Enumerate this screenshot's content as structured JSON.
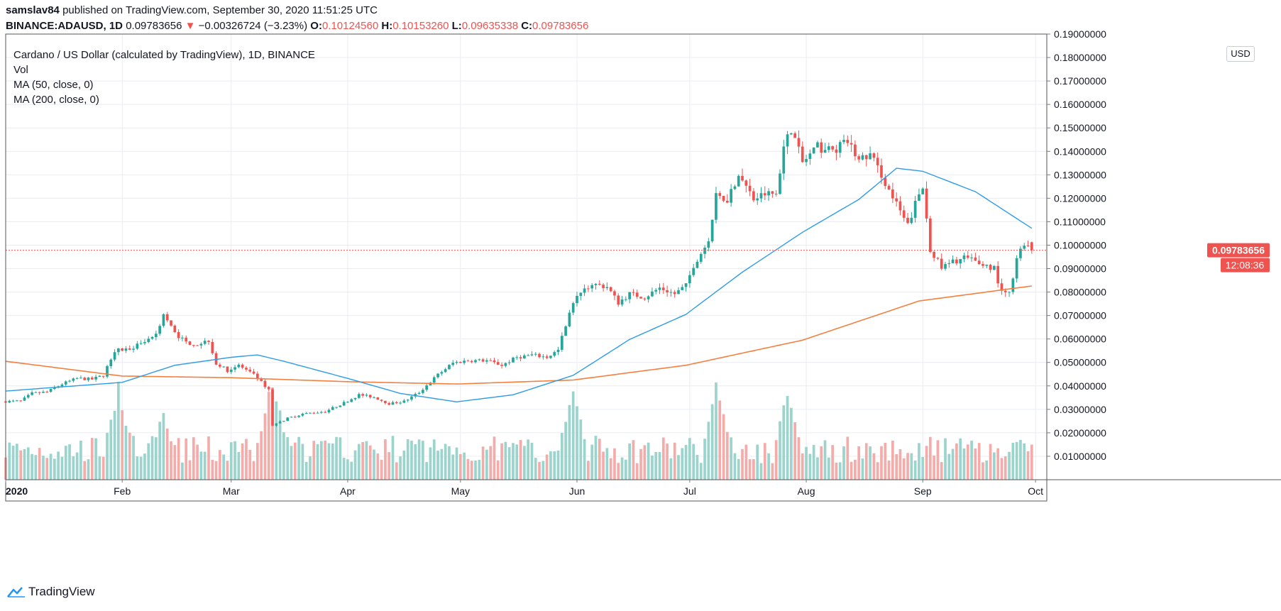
{
  "header": {
    "publisher": "samslav84",
    "published_text": "published on TradingView.com, September 30, 2020 11:51:25 UTC",
    "symbol": "BINANCE:ADAUSD, 1D",
    "last": "0.09783656",
    "change_arrow": "▼",
    "change": "−0.00326724 (−3.23%)",
    "o_label": "O:",
    "o": "0.10124560",
    "h_label": "H:",
    "h": "0.10153260",
    "l_label": "L:",
    "l": "0.09635338",
    "c_label": "C:",
    "c": "0.09783656"
  },
  "legend": {
    "title": "Cardano / US Dollar (calculated by TradingView), 1D, BINANCE",
    "vol": "Vol",
    "ma50": "MA (50, close, 0)",
    "ma200": "MA (200, close, 0)"
  },
  "price_scale": {
    "currency": "USD",
    "last_price_label": "0.09783656",
    "countdown_label": "12:08:36"
  },
  "footer": {
    "brand": "TradingView",
    "logo_icon": "tradingview-logo-icon"
  },
  "colors": {
    "up": "#26a69a",
    "down": "#ef5350",
    "up_vol": "#9bd4cc",
    "down_vol": "#f4acab",
    "ma50": "#2e9be8",
    "ma200": "#f57f3f",
    "grid": "#e8ecf2"
  },
  "chart_data": {
    "type": "candlestick",
    "interval": "1D",
    "ylim": [
      0,
      0.19
    ],
    "yticks": [
      "0.01000000",
      "0.02000000",
      "0.03000000",
      "0.04000000",
      "0.05000000",
      "0.06000000",
      "0.07000000",
      "0.08000000",
      "0.09000000",
      "0.10000000",
      "0.11000000",
      "0.12000000",
      "0.13000000",
      "0.14000000",
      "0.15000000",
      "0.16000000",
      "0.17000000",
      "0.18000000",
      "0.19000000"
    ],
    "xlim": [
      "2020-01-01",
      "2020-10-04"
    ],
    "xticks": [
      {
        "date": "2020-01-01",
        "label": "2020"
      },
      {
        "date": "2020-02-01",
        "label": "Feb"
      },
      {
        "date": "2020-03-01",
        "label": "Mar"
      },
      {
        "date": "2020-04-01",
        "label": "Apr"
      },
      {
        "date": "2020-05-01",
        "label": "May"
      },
      {
        "date": "2020-06-01",
        "label": "Jun"
      },
      {
        "date": "2020-07-01",
        "label": "Jul"
      },
      {
        "date": "2020-08-01",
        "label": "Aug"
      },
      {
        "date": "2020-09-01",
        "label": "Sep"
      },
      {
        "date": "2020-10-01",
        "label": "Oct"
      }
    ],
    "close_anchors": [
      [
        "2020-01-01",
        0.0334
      ],
      [
        "2020-01-05",
        0.0335
      ],
      [
        "2020-01-08",
        0.0368
      ],
      [
        "2020-01-12",
        0.0374
      ],
      [
        "2020-01-16",
        0.0408
      ],
      [
        "2020-01-20",
        0.0432
      ],
      [
        "2020-01-24",
        0.0428
      ],
      [
        "2020-01-27",
        0.0445
      ],
      [
        "2020-01-30",
        0.0552
      ],
      [
        "2020-02-02",
        0.0555
      ],
      [
        "2020-02-06",
        0.0578
      ],
      [
        "2020-02-10",
        0.062
      ],
      [
        "2020-02-12",
        0.0706
      ],
      [
        "2020-02-15",
        0.0625
      ],
      [
        "2020-02-18",
        0.0585
      ],
      [
        "2020-02-21",
        0.0578
      ],
      [
        "2020-02-24",
        0.0595
      ],
      [
        "2020-02-26",
        0.0495
      ],
      [
        "2020-02-29",
        0.0466
      ],
      [
        "2020-03-03",
        0.0488
      ],
      [
        "2020-03-07",
        0.0446
      ],
      [
        "2020-03-11",
        0.0385
      ],
      [
        "2020-03-12",
        0.0232
      ],
      [
        "2020-03-16",
        0.0262
      ],
      [
        "2020-03-20",
        0.0281
      ],
      [
        "2020-03-26",
        0.0291
      ],
      [
        "2020-03-31",
        0.0328
      ],
      [
        "2020-04-04",
        0.0362
      ],
      [
        "2020-04-08",
        0.0352
      ],
      [
        "2020-04-12",
        0.0324
      ],
      [
        "2020-04-16",
        0.0334
      ],
      [
        "2020-04-20",
        0.0372
      ],
      [
        "2020-04-25",
        0.0448
      ],
      [
        "2020-04-29",
        0.0498
      ],
      [
        "2020-05-03",
        0.0508
      ],
      [
        "2020-05-08",
        0.0508
      ],
      [
        "2020-05-12",
        0.0488
      ],
      [
        "2020-05-16",
        0.0522
      ],
      [
        "2020-05-20",
        0.0532
      ],
      [
        "2020-05-24",
        0.0522
      ],
      [
        "2020-05-27",
        0.0552
      ],
      [
        "2020-05-30",
        0.0718
      ],
      [
        "2020-06-02",
        0.0805
      ],
      [
        "2020-06-05",
        0.0835
      ],
      [
        "2020-06-09",
        0.0822
      ],
      [
        "2020-06-12",
        0.0755
      ],
      [
        "2020-06-15",
        0.0792
      ],
      [
        "2020-06-19",
        0.0778
      ],
      [
        "2020-06-23",
        0.0818
      ],
      [
        "2020-06-27",
        0.0792
      ],
      [
        "2020-06-30",
        0.0827
      ],
      [
        "2020-07-02",
        0.0915
      ],
      [
        "2020-07-06",
        0.1018
      ],
      [
        "2020-07-08",
        0.1205
      ],
      [
        "2020-07-11",
        0.1198
      ],
      [
        "2020-07-14",
        0.1302
      ],
      [
        "2020-07-18",
        0.1195
      ],
      [
        "2020-07-21",
        0.1218
      ],
      [
        "2020-07-24",
        0.1218
      ],
      [
        "2020-07-26",
        0.1418
      ],
      [
        "2020-07-28",
        0.1498
      ],
      [
        "2020-07-31",
        0.1352
      ],
      [
        "2020-08-04",
        0.1418
      ],
      [
        "2020-08-08",
        0.1402
      ],
      [
        "2020-08-12",
        0.1442
      ],
      [
        "2020-08-15",
        0.1362
      ],
      [
        "2020-08-18",
        0.1385
      ],
      [
        "2020-08-21",
        0.1302
      ],
      [
        "2020-08-23",
        0.1232
      ],
      [
        "2020-08-26",
        0.1142
      ],
      [
        "2020-08-28",
        0.1082
      ],
      [
        "2020-08-30",
        0.1176
      ],
      [
        "2020-09-01",
        0.1245
      ],
      [
        "2020-09-03",
        0.0985
      ],
      [
        "2020-09-06",
        0.0902
      ],
      [
        "2020-09-09",
        0.0928
      ],
      [
        "2020-09-12",
        0.0948
      ],
      [
        "2020-09-16",
        0.0922
      ],
      [
        "2020-09-20",
        0.0902
      ],
      [
        "2020-09-22",
        0.0795
      ],
      [
        "2020-09-24",
        0.0792
      ],
      [
        "2020-09-26",
        0.0948
      ],
      [
        "2020-09-28",
        0.1012
      ],
      [
        "2020-09-30",
        0.0978
      ]
    ],
    "volume_spikes": [
      [
        "2020-01-31",
        0.95
      ],
      [
        "2020-02-12",
        0.65
      ],
      [
        "2020-03-12",
        1.0
      ],
      [
        "2020-05-31",
        1.0
      ],
      [
        "2020-07-08",
        1.0
      ],
      [
        "2020-07-27",
        0.87
      ],
      [
        "2020-09-27",
        0.42
      ]
    ],
    "ma50_anchors": [
      [
        "2020-01-01",
        0.0378
      ],
      [
        "2020-02-01",
        0.0415
      ],
      [
        "2020-02-15",
        0.0488
      ],
      [
        "2020-03-01",
        0.0522
      ],
      [
        "2020-03-08",
        0.0532
      ],
      [
        "2020-03-15",
        0.0505
      ],
      [
        "2020-04-01",
        0.0432
      ],
      [
        "2020-04-15",
        0.0368
      ],
      [
        "2020-04-30",
        0.0332
      ],
      [
        "2020-05-15",
        0.0362
      ],
      [
        "2020-05-31",
        0.0445
      ],
      [
        "2020-06-15",
        0.0598
      ],
      [
        "2020-06-30",
        0.0705
      ],
      [
        "2020-07-15",
        0.0885
      ],
      [
        "2020-07-31",
        0.1055
      ],
      [
        "2020-08-15",
        0.1195
      ],
      [
        "2020-08-25",
        0.1328
      ],
      [
        "2020-09-01",
        0.1315
      ],
      [
        "2020-09-15",
        0.1228
      ],
      [
        "2020-09-30",
        0.1072
      ]
    ],
    "ma200_anchors": [
      [
        "2020-01-01",
        0.0505
      ],
      [
        "2020-02-01",
        0.0442
      ],
      [
        "2020-03-01",
        0.0435
      ],
      [
        "2020-04-01",
        0.0418
      ],
      [
        "2020-04-30",
        0.0408
      ],
      [
        "2020-05-31",
        0.0425
      ],
      [
        "2020-06-30",
        0.0488
      ],
      [
        "2020-07-31",
        0.0595
      ],
      [
        "2020-08-31",
        0.0762
      ],
      [
        "2020-09-30",
        0.0826
      ]
    ]
  }
}
